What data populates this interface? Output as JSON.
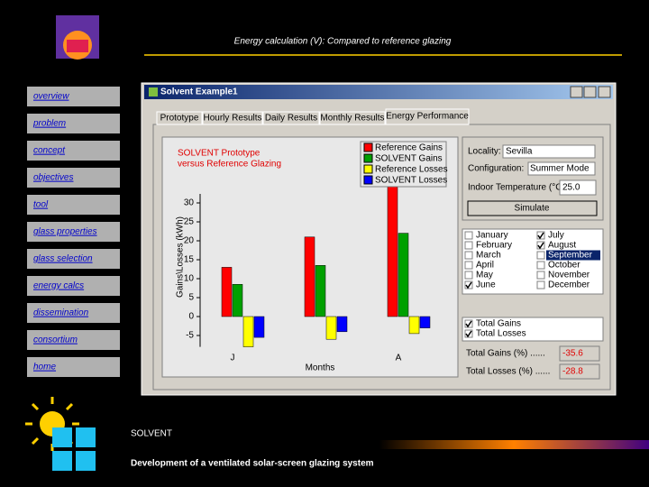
{
  "header": {
    "title": "Energy calculation (V): Compared to reference glazing"
  },
  "nav": [
    "overview",
    "problem",
    "concept",
    "objectives",
    "tool",
    "glass properties",
    "glass selection",
    "energy calcs",
    "dissemination",
    "consortium",
    "home"
  ],
  "window": {
    "title": "Solvent Example1",
    "tabs": [
      "Prototype",
      "Hourly Results",
      "Daily Results",
      "Monthly Results",
      "Energy Performance"
    ]
  },
  "chart": {
    "type": "bar",
    "title": [
      "SOLVENT Prototype",
      "versus Reference Glazing"
    ],
    "y_label": "Gains\\Losses (kWh)",
    "x_label": "Months",
    "categories": [
      "J",
      null,
      "A"
    ],
    "series": [
      {
        "name": "Reference Gains",
        "color": "#ff0000",
        "values": [
          13,
          21,
          37
        ]
      },
      {
        "name": "SOLVENT Gains",
        "color": "#00a000",
        "values": [
          8.5,
          13.5,
          22
        ]
      },
      {
        "name": "Reference Losses",
        "color": "#ffff00",
        "values": [
          -8,
          -6,
          -4.5
        ]
      },
      {
        "name": "SOLVENT Losses",
        "color": "#0000ff",
        "values": [
          -5.5,
          -4,
          -3
        ]
      }
    ],
    "ylim": [
      -8,
      37
    ],
    "yticks": [
      -5,
      0,
      5,
      10,
      15,
      20,
      25,
      30
    ]
  },
  "controls": {
    "locality_label": "Locality:",
    "locality": "Sevilla",
    "configuration_label": "Configuration:",
    "configuration": "Summer Mode",
    "temperature_label": "Indoor Temperature (°C):",
    "temperature": "25.0",
    "button": "Simulate",
    "months": [
      {
        "label": "January",
        "checked": false
      },
      {
        "label": "February",
        "checked": false
      },
      {
        "label": "March",
        "checked": false
      },
      {
        "label": "April",
        "checked": false
      },
      {
        "label": "May",
        "checked": false
      },
      {
        "label": "June",
        "checked": true
      },
      {
        "label": "July",
        "checked": true
      },
      {
        "label": "August",
        "checked": true
      },
      {
        "label": "September",
        "checked": false,
        "selected": true
      },
      {
        "label": "October",
        "checked": false
      },
      {
        "label": "November",
        "checked": false
      },
      {
        "label": "December",
        "checked": false
      }
    ],
    "totals": [
      {
        "label": "Total Gains",
        "checked": true
      },
      {
        "label": "Total Losses",
        "checked": true
      }
    ],
    "results": [
      {
        "label": "Total Gains (%) ......",
        "value": -35.6
      },
      {
        "label": "Total Losses (%) ......",
        "value": -28.8
      }
    ]
  },
  "footer": {
    "title": "SOLVENT",
    "subtitle": "Development of a ventilated solar-screen glazing system"
  }
}
